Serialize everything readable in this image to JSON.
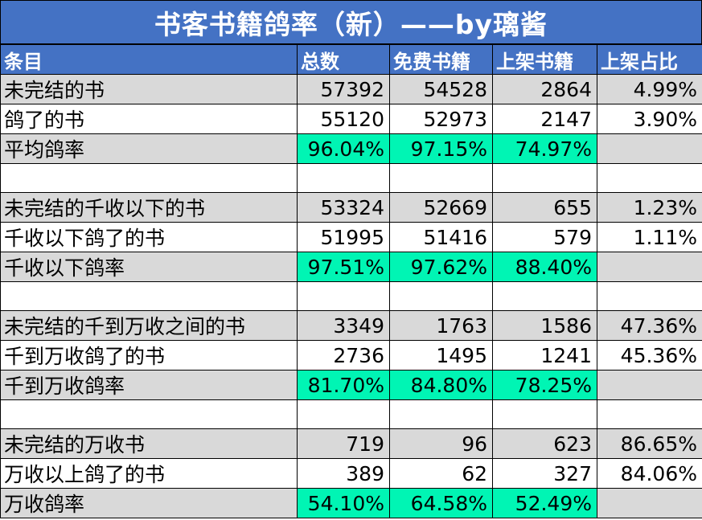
{
  "title": "书客书籍鸽率（新）——by璃酱",
  "headers": [
    "条目",
    "总数",
    "免费书籍",
    "上架书籍",
    "上架占比"
  ],
  "colors": {
    "header_bg": "#4472c4",
    "highlight": "#00f5b4",
    "gray_row": "#d9d9d9"
  },
  "rows": [
    {
      "label": "未完结的书",
      "total": "57392",
      "free": "54528",
      "paid": "2864",
      "ratio": "4.99%"
    },
    {
      "label": "鸽了的书",
      "total": "55120",
      "free": "52973",
      "paid": "2147",
      "ratio": "3.90%"
    },
    {
      "label": "平均鸽率",
      "total": "96.04%",
      "free": "97.15%",
      "paid": "74.97%",
      "ratio": ""
    },
    {
      "label": "",
      "total": "",
      "free": "",
      "paid": "",
      "ratio": ""
    },
    {
      "label": "未完结的千收以下的书",
      "total": "53324",
      "free": "52669",
      "paid": "655",
      "ratio": "1.23%"
    },
    {
      "label": "千收以下鸽了的书",
      "total": "51995",
      "free": "51416",
      "paid": "579",
      "ratio": "1.11%"
    },
    {
      "label": "千收以下鸽率",
      "total": "97.51%",
      "free": "97.62%",
      "paid": "88.40%",
      "ratio": ""
    },
    {
      "label": "",
      "total": "",
      "free": "",
      "paid": "",
      "ratio": ""
    },
    {
      "label": "未完结的千到万收之间的书",
      "total": "3349",
      "free": "1763",
      "paid": "1586",
      "ratio": "47.36%"
    },
    {
      "label": "千到万收鸽了的书",
      "total": "2736",
      "free": "1495",
      "paid": "1241",
      "ratio": "45.36%"
    },
    {
      "label": "千到万收鸽率",
      "total": "81.70%",
      "free": "84.80%",
      "paid": "78.25%",
      "ratio": ""
    },
    {
      "label": "",
      "total": "",
      "free": "",
      "paid": "",
      "ratio": ""
    },
    {
      "label": "未完结的万收书",
      "total": "719",
      "free": "96",
      "paid": "623",
      "ratio": "86.65%"
    },
    {
      "label": "万收以上鸽了的书",
      "total": "389",
      "free": "62",
      "paid": "327",
      "ratio": "84.06%"
    },
    {
      "label": "万收鸽率",
      "total": "54.10%",
      "free": "64.58%",
      "paid": "52.49%",
      "ratio": ""
    }
  ]
}
